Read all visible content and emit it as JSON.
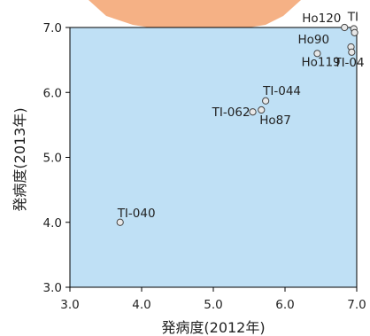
{
  "chart_data": {
    "type": "scatter",
    "title": "",
    "xlabel": "発病度(2012年)",
    "ylabel": "発病度(2013年)",
    "xlim": [
      3.0,
      7.0
    ],
    "ylim": [
      3.0,
      7.0
    ],
    "xticks": [
      "3.0",
      "4.0",
      "5.0",
      "6.0",
      "7.0"
    ],
    "yticks": [
      "3.0",
      "4.0",
      "5.0",
      "6.0",
      "7.0"
    ],
    "plot_background": "#bfe0f5",
    "marker_fill": "#e8e8e8",
    "points": [
      {
        "label": "TI-040",
        "x": 3.7,
        "y": 4.0
      },
      {
        "label": "TI-062",
        "x": 5.55,
        "y": 5.7
      },
      {
        "label": "TI-044",
        "x": 5.73,
        "y": 5.87
      },
      {
        "label": "Ho87",
        "x": 5.67,
        "y": 5.73
      },
      {
        "label": "Ho119",
        "x": 6.45,
        "y": 6.6
      },
      {
        "label": "Ho90",
        "x": 6.92,
        "y": 6.7
      },
      {
        "label": "TI-04",
        "x": 6.93,
        "y": 6.62
      },
      {
        "label": "Ho120",
        "x": 6.83,
        "y": 7.0
      },
      {
        "label": "TI",
        "x": 6.96,
        "y": 6.98
      },
      {
        "label": "",
        "x": 6.97,
        "y": 6.92
      }
    ]
  }
}
